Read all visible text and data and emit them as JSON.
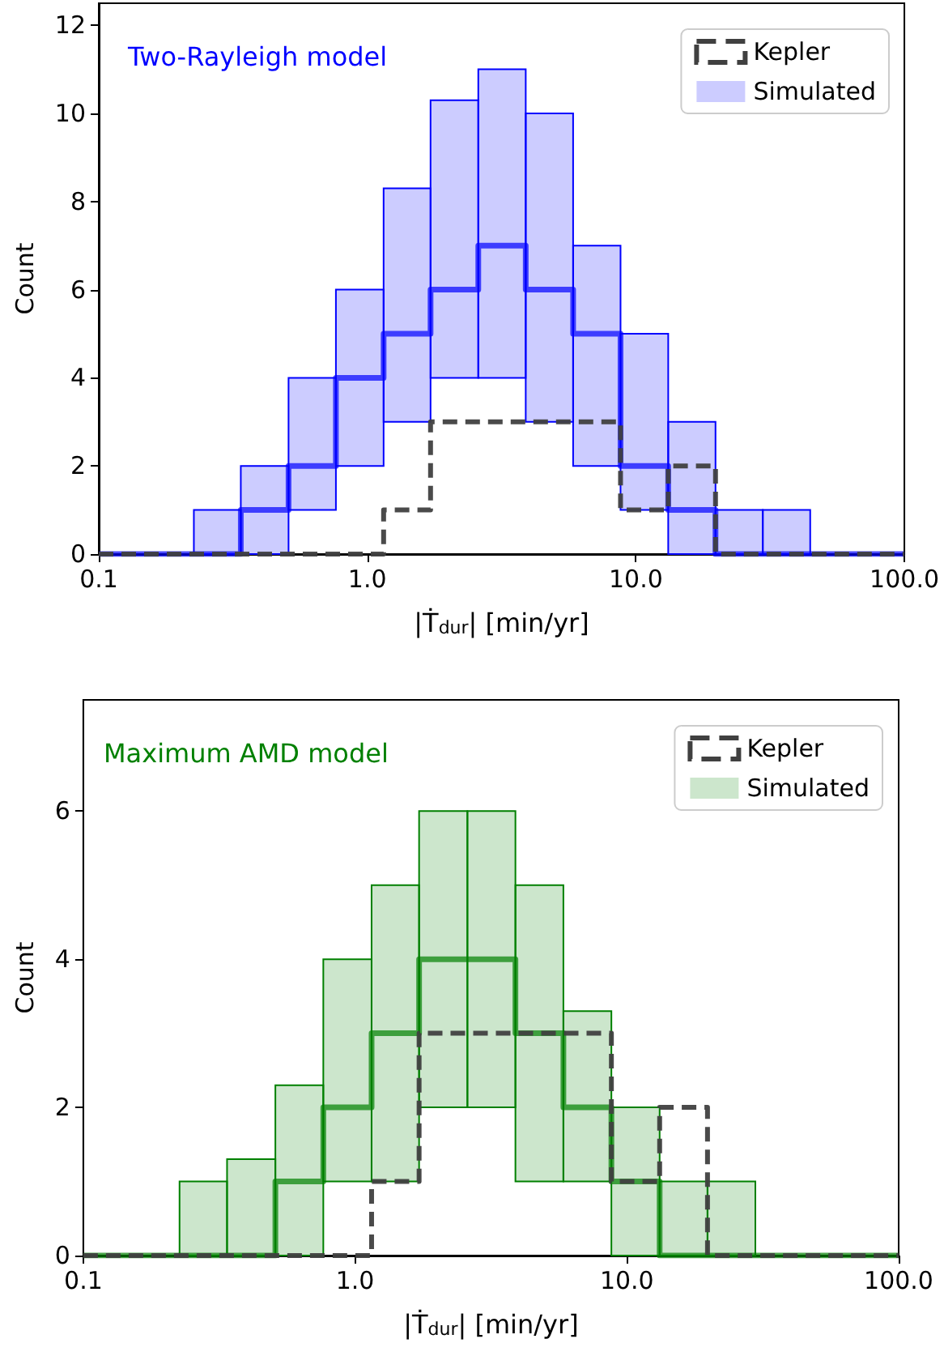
{
  "chart_data": [
    {
      "type": "histogram",
      "title": "Two-Rayleigh model",
      "xlabel": "|Ṫ$_{dur}$| [min/yr]",
      "ylabel": "Count",
      "bins": [
        0.1,
        0.15,
        0.226,
        0.338,
        0.509,
        0.764,
        1.15,
        1.72,
        2.59,
        3.89,
        5.84,
        8.77,
        13.2,
        19.8,
        29.7,
        44.6,
        67,
        100
      ],
      "series": [
        {
          "name": "Kepler",
          "color": "#404040",
          "line_style": "dashed",
          "values": [
            0,
            0,
            0,
            0,
            0,
            0,
            1,
            3,
            3,
            3,
            3,
            1,
            2,
            0,
            0,
            0,
            0
          ]
        },
        {
          "name": "Simulated",
          "color": "#0000ff",
          "base": [
            null,
            null,
            0,
            0,
            1,
            2,
            3,
            4,
            4,
            3,
            2,
            1,
            0,
            0,
            0,
            null,
            null
          ],
          "values": [
            null,
            null,
            1,
            2,
            3,
            4,
            5.3,
            6.3,
            7,
            7,
            5,
            4,
            3,
            1,
            1,
            null,
            null
          ]
        },
        {
          "color": "#0000ff",
          "values": [
            0,
            0,
            0,
            1,
            2,
            4,
            5,
            6,
            7,
            6,
            5,
            2,
            1,
            0,
            0,
            0,
            0
          ]
        }
      ],
      "log": "x",
      "xlim": [
        0.1,
        100
      ],
      "xticks": [
        {
          "value": 0.1,
          "label": "0.1"
        },
        {
          "value": 1,
          "label": "1.0"
        },
        {
          "value": 10,
          "label": "10.0"
        },
        {
          "value": 100,
          "label": "100.0"
        }
      ],
      "ylim": [
        0,
        12.5
      ],
      "yticks": [
        0,
        2,
        4,
        6,
        8,
        10,
        12
      ],
      "grid": false,
      "legend": "top right"
    },
    {
      "type": "histogram",
      "title": "Maximum AMD model",
      "xlabel": "|Ṫ$_{dur}$| [min/yr]",
      "ylabel": "Count",
      "bins": [
        0.1,
        0.15,
        0.226,
        0.338,
        0.509,
        0.764,
        1.15,
        1.72,
        2.59,
        3.89,
        5.84,
        8.77,
        13.2,
        19.8,
        29.7,
        44.6,
        67,
        100
      ],
      "series": [
        {
          "name": "Kepler",
          "color": "#404040",
          "line_style": "dashed",
          "values": [
            0,
            0,
            0,
            0,
            0,
            0,
            1,
            3,
            3,
            3,
            3,
            1,
            2,
            0,
            0,
            0,
            0
          ]
        },
        {
          "name": "Simulated",
          "color": "#008000",
          "base": [
            null,
            null,
            0,
            0,
            0,
            1,
            1,
            2,
            2,
            1,
            1,
            0,
            0,
            0,
            null,
            null,
            null
          ],
          "values": [
            null,
            null,
            1,
            1.3,
            2.3,
            3,
            4,
            4,
            4,
            4,
            2.3,
            2,
            1,
            1,
            null,
            null,
            null
          ]
        },
        {
          "color": "#008000",
          "values": [
            0,
            0,
            0,
            0,
            1,
            2,
            3,
            4,
            4,
            3,
            2,
            1,
            0,
            0,
            0,
            0,
            0
          ]
        }
      ],
      "log": "x",
      "xlim": [
        0.1,
        100
      ],
      "xticks": [
        {
          "value": 0.1,
          "label": "0.1"
        },
        {
          "value": 1,
          "label": "1.0"
        },
        {
          "value": 10,
          "label": "10.0"
        },
        {
          "value": 100,
          "label": "100.0"
        }
      ],
      "ylim": [
        0,
        7.5
      ],
      "yticks": [
        0,
        2,
        4,
        6
      ],
      "grid": false,
      "legend": "top right"
    }
  ]
}
